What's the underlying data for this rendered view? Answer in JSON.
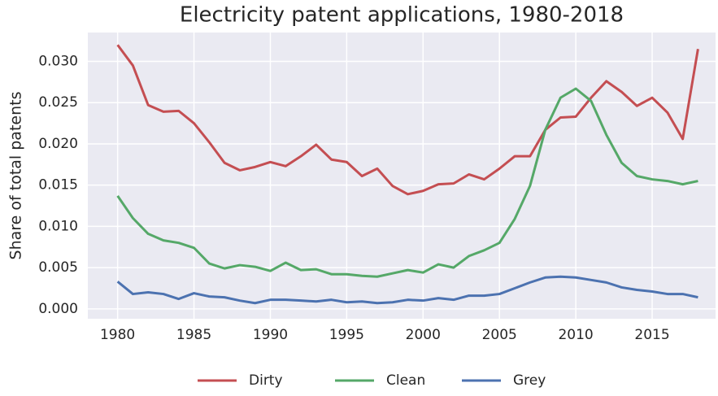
{
  "chart_data": {
    "type": "line",
    "title": "Electricity patent applications, 1980-2018",
    "ylabel": "Share of total patents",
    "x": [
      1980,
      1981,
      1982,
      1983,
      1984,
      1985,
      1986,
      1987,
      1988,
      1989,
      1990,
      1991,
      1992,
      1993,
      1994,
      1995,
      1996,
      1997,
      1998,
      1999,
      2000,
      2001,
      2002,
      2003,
      2004,
      2005,
      2006,
      2007,
      2008,
      2009,
      2010,
      2011,
      2012,
      2013,
      2014,
      2015,
      2016,
      2017,
      2018
    ],
    "series": [
      {
        "name": "Dirty",
        "color": "#c44e52",
        "values": [
          0.032,
          0.0295,
          0.0247,
          0.0239,
          0.024,
          0.0225,
          0.0202,
          0.0177,
          0.0168,
          0.0172,
          0.0178,
          0.0173,
          0.0185,
          0.0199,
          0.0181,
          0.0178,
          0.0161,
          0.017,
          0.0149,
          0.0139,
          0.0143,
          0.0151,
          0.0152,
          0.0163,
          0.0157,
          0.017,
          0.0185,
          0.0185,
          0.0217,
          0.0232,
          0.0233,
          0.0256,
          0.0276,
          0.0263,
          0.0246,
          0.0256,
          0.0238,
          0.0206,
          0.0315
        ]
      },
      {
        "name": "Clean",
        "color": "#55a868",
        "values": [
          0.0137,
          0.011,
          0.0091,
          0.0083,
          0.008,
          0.0074,
          0.0055,
          0.0049,
          0.0053,
          0.0051,
          0.0046,
          0.0056,
          0.0047,
          0.0048,
          0.0042,
          0.0042,
          0.004,
          0.0039,
          0.0043,
          0.0047,
          0.0044,
          0.0054,
          0.005,
          0.0064,
          0.0071,
          0.008,
          0.0109,
          0.0149,
          0.0217,
          0.0256,
          0.0267,
          0.0252,
          0.0211,
          0.0177,
          0.0161,
          0.0157,
          0.0155,
          0.0151,
          0.0155
        ]
      },
      {
        "name": "Grey",
        "color": "#4c72b0",
        "values": [
          0.0033,
          0.0018,
          0.002,
          0.0018,
          0.0012,
          0.0019,
          0.0015,
          0.0014,
          0.001,
          0.0007,
          0.0011,
          0.0011,
          0.001,
          0.0009,
          0.0011,
          0.0008,
          0.0009,
          0.0007,
          0.0008,
          0.0011,
          0.001,
          0.0013,
          0.0011,
          0.0016,
          0.0016,
          0.0018,
          0.0025,
          0.0032,
          0.0038,
          0.0039,
          0.0038,
          0.0035,
          0.0032,
          0.0026,
          0.0023,
          0.0021,
          0.0018,
          0.0018,
          0.0014
        ]
      }
    ],
    "xlim": [
      1978.05,
      2019.15
    ],
    "xticks": [
      1980,
      1985,
      1990,
      1995,
      2000,
      2005,
      2010,
      2015
    ],
    "ylim": [
      -0.0012,
      0.0335
    ],
    "yticks": [
      {
        "value": 0,
        "label": "0.000"
      },
      {
        "value": 0.005,
        "label": "0.005"
      },
      {
        "value": 0.01,
        "label": "0.010"
      },
      {
        "value": 0.015,
        "label": "0.015"
      },
      {
        "value": 0.02,
        "label": "0.020"
      },
      {
        "value": 0.025,
        "label": "0.025"
      },
      {
        "value": 0.03,
        "label": "0.030"
      }
    ],
    "grid": true,
    "legend": "lower center"
  }
}
